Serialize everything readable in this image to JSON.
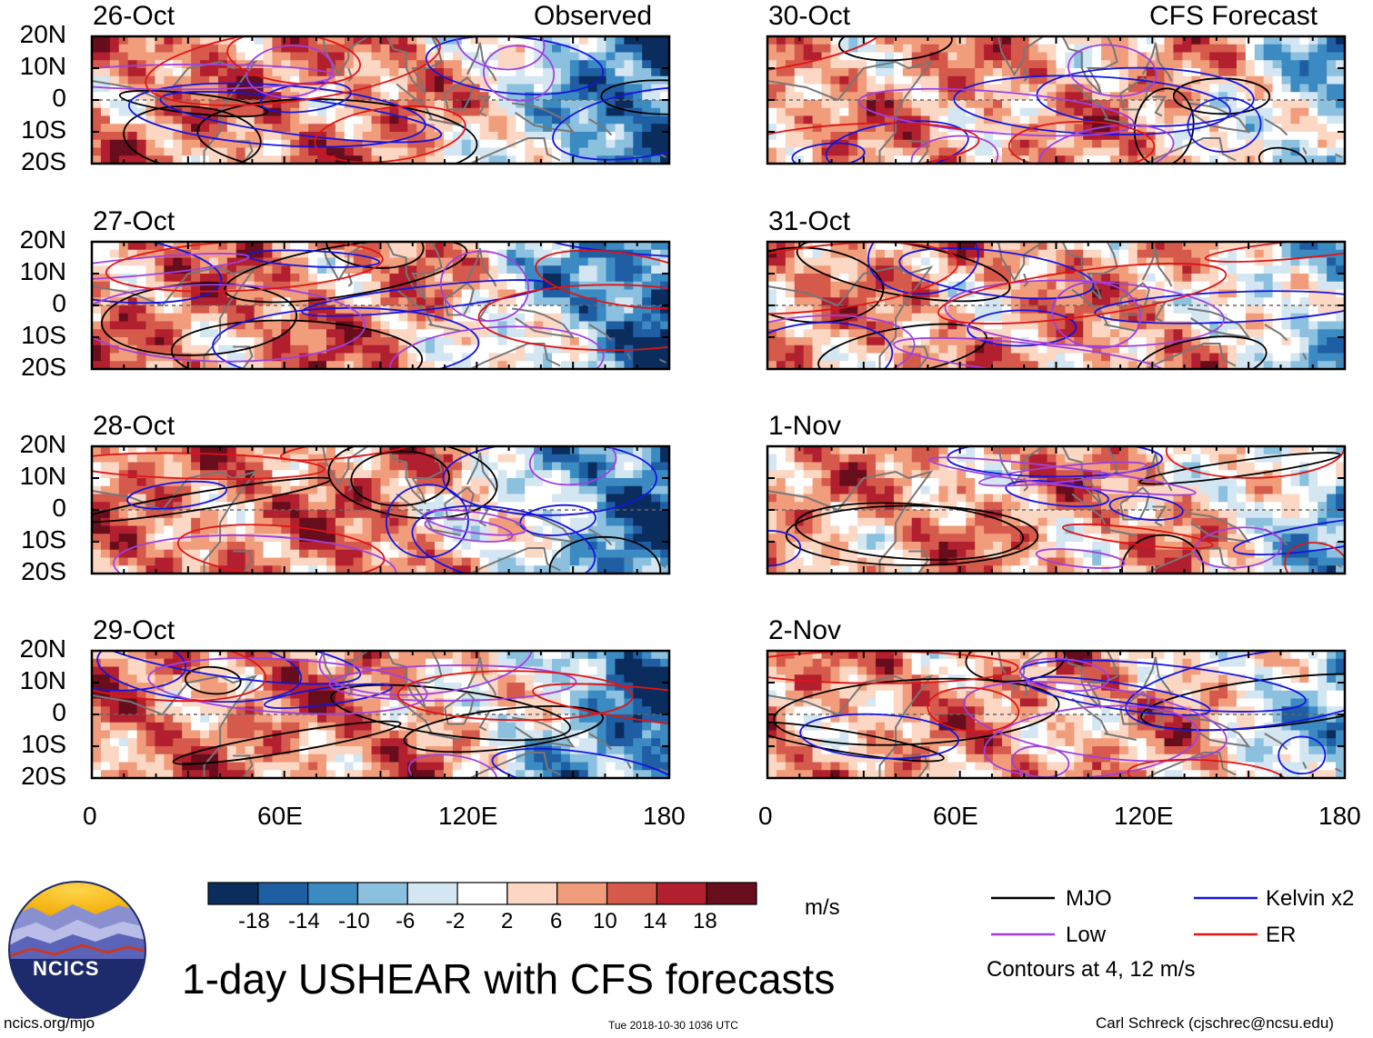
{
  "chart_data": {
    "type": "heatmap",
    "title": "1-day USHEAR with CFS forecasts",
    "variable": "USHEAR",
    "units": "m/s",
    "column_titles": [
      "Observed",
      "CFS Forecast"
    ],
    "panels": [
      {
        "date": "26-Oct",
        "source": "Observed"
      },
      {
        "date": "27-Oct",
        "source": "Observed"
      },
      {
        "date": "28-Oct",
        "source": "Observed"
      },
      {
        "date": "29-Oct",
        "source": "Observed"
      },
      {
        "date": "30-Oct",
        "source": "CFS Forecast"
      },
      {
        "date": "31-Oct",
        "source": "CFS Forecast"
      },
      {
        "date": "1-Nov",
        "source": "CFS Forecast"
      },
      {
        "date": "2-Nov",
        "source": "CFS Forecast"
      }
    ],
    "x_axis": {
      "range": [
        0,
        180
      ],
      "ticks": [
        0,
        60,
        120,
        180
      ],
      "tick_labels": [
        "0",
        "60E",
        "120E",
        "180"
      ]
    },
    "y_axis": {
      "range": [
        -20,
        20
      ],
      "ticks": [
        20,
        10,
        0,
        -10,
        -20
      ],
      "tick_labels": [
        "20N",
        "10N",
        "0",
        "10S",
        "20S"
      ]
    },
    "colorbar": {
      "levels": [
        -18,
        -14,
        -10,
        -6,
        -2,
        2,
        6,
        10,
        14,
        18
      ],
      "labels": [
        "-18",
        "-14",
        "-10",
        "-6",
        "-2",
        "2",
        "6",
        "10",
        "14",
        "18"
      ],
      "colors": [
        "#0b2d5e",
        "#1f5ea3",
        "#3b8ac2",
        "#8cc0df",
        "#d3e6f2",
        "#ffffff",
        "#fbd7c4",
        "#f19d7c",
        "#d55a4c",
        "#b21f2e",
        "#670d1c"
      ]
    },
    "legend": [
      {
        "name": "MJO",
        "color": "#000000"
      },
      {
        "name": "Kelvin x2",
        "color": "#1414e0"
      },
      {
        "name": "Low",
        "color": "#a040e0"
      },
      {
        "name": "ER",
        "color": "#e01414"
      }
    ],
    "contour_note": "Contours at 4, 12 m/s"
  },
  "footer": {
    "logo_text": "NCICS",
    "url": "ncics.org/mjo",
    "timestamp": "Tue 2018-10-30 1036 UTC",
    "credit": "Carl Schreck (cjschrec@ncsu.edu)"
  }
}
